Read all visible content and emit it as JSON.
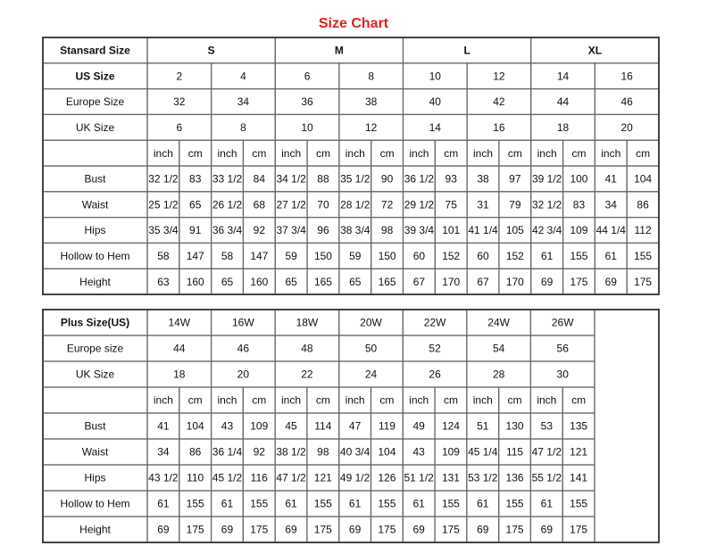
{
  "title": "Size Chart",
  "table1": {
    "rows": [
      {
        "label": "Stansard Size",
        "values": [
          "S",
          "M",
          "L",
          "XL"
        ]
      },
      {
        "label": "US Size",
        "values": [
          "2",
          "4",
          "6",
          "8",
          "10",
          "12",
          "14",
          "16"
        ]
      },
      {
        "label": "Europe Size",
        "values": [
          "32",
          "34",
          "36",
          "38",
          "40",
          "42",
          "44",
          "46"
        ]
      },
      {
        "label": "UK Size",
        "values": [
          "6",
          "8",
          "10",
          "12",
          "14",
          "16",
          "18",
          "20"
        ]
      },
      {
        "label": "",
        "values": [
          "inch",
          "cm",
          "inch",
          "cm",
          "inch",
          "cm",
          "inch",
          "cm",
          "inch",
          "cm",
          "inch",
          "cm",
          "inch",
          "cm",
          "inch",
          "cm"
        ]
      },
      {
        "label": "Bust",
        "values": [
          "32 1/2",
          "83",
          "33 1/2",
          "84",
          "34 1/2",
          "88",
          "35 1/2",
          "90",
          "36 1/2",
          "93",
          "38",
          "97",
          "39 1/2",
          "100",
          "41",
          "104"
        ]
      },
      {
        "label": "Waist",
        "values": [
          "25 1/2",
          "65",
          "26 1/2",
          "68",
          "27 1/2",
          "70",
          "28 1/2",
          "72",
          "29 1/2",
          "75",
          "31",
          "79",
          "32 1/2",
          "83",
          "34",
          "86"
        ]
      },
      {
        "label": "Hips",
        "values": [
          "35 3/4",
          "91",
          "36 3/4",
          "92",
          "37 3/4",
          "96",
          "38 3/4",
          "98",
          "39 3/4",
          "101",
          "41 1/4",
          "105",
          "42 3/4",
          "109",
          "44 1/4",
          "112"
        ]
      },
      {
        "label": "Hollow to Hem",
        "values": [
          "58",
          "147",
          "58",
          "147",
          "59",
          "150",
          "59",
          "150",
          "60",
          "152",
          "60",
          "152",
          "61",
          "155",
          "61",
          "155"
        ]
      },
      {
        "label": "Height",
        "values": [
          "63",
          "160",
          "65",
          "160",
          "65",
          "165",
          "65",
          "165",
          "67",
          "170",
          "67",
          "170",
          "69",
          "175",
          "69",
          "175"
        ]
      }
    ]
  },
  "table2": {
    "rows": [
      {
        "label": "Plus Size(US)",
        "values": [
          "14W",
          "16W",
          "18W",
          "20W",
          "22W",
          "24W",
          "26W"
        ]
      },
      {
        "label": "Europe size",
        "values": [
          "44",
          "46",
          "48",
          "50",
          "52",
          "54",
          "56"
        ]
      },
      {
        "label": "UK Size",
        "values": [
          "18",
          "20",
          "22",
          "24",
          "26",
          "28",
          "30"
        ]
      },
      {
        "label": "",
        "values": [
          "inch",
          "cm",
          "inch",
          "cm",
          "inch",
          "cm",
          "inch",
          "cm",
          "inch",
          "cm",
          "inch",
          "cm",
          "inch",
          "cm"
        ]
      },
      {
        "label": "Bust",
        "values": [
          "41",
          "104",
          "43",
          "109",
          "45",
          "114",
          "47",
          "119",
          "49",
          "124",
          "51",
          "130",
          "53",
          "135"
        ]
      },
      {
        "label": "Waist",
        "values": [
          "34",
          "86",
          "36 1/4",
          "92",
          "38 1/2",
          "98",
          "40 3/4",
          "104",
          "43",
          "109",
          "45 1/4",
          "115",
          "47 1/2",
          "121"
        ]
      },
      {
        "label": "Hips",
        "values": [
          "43 1/2",
          "110",
          "45 1/2",
          "116",
          "47 1/2",
          "121",
          "49 1/2",
          "126",
          "51 1/2",
          "131",
          "53 1/2",
          "136",
          "55 1/2",
          "141"
        ]
      },
      {
        "label": "Hollow to Hem",
        "values": [
          "61",
          "155",
          "61",
          "155",
          "61",
          "155",
          "61",
          "155",
          "61",
          "155",
          "61",
          "155",
          "61",
          "155"
        ]
      },
      {
        "label": "Height",
        "values": [
          "69",
          "175",
          "69",
          "175",
          "69",
          "175",
          "69",
          "175",
          "69",
          "175",
          "69",
          "175",
          "69",
          "175"
        ]
      }
    ]
  }
}
